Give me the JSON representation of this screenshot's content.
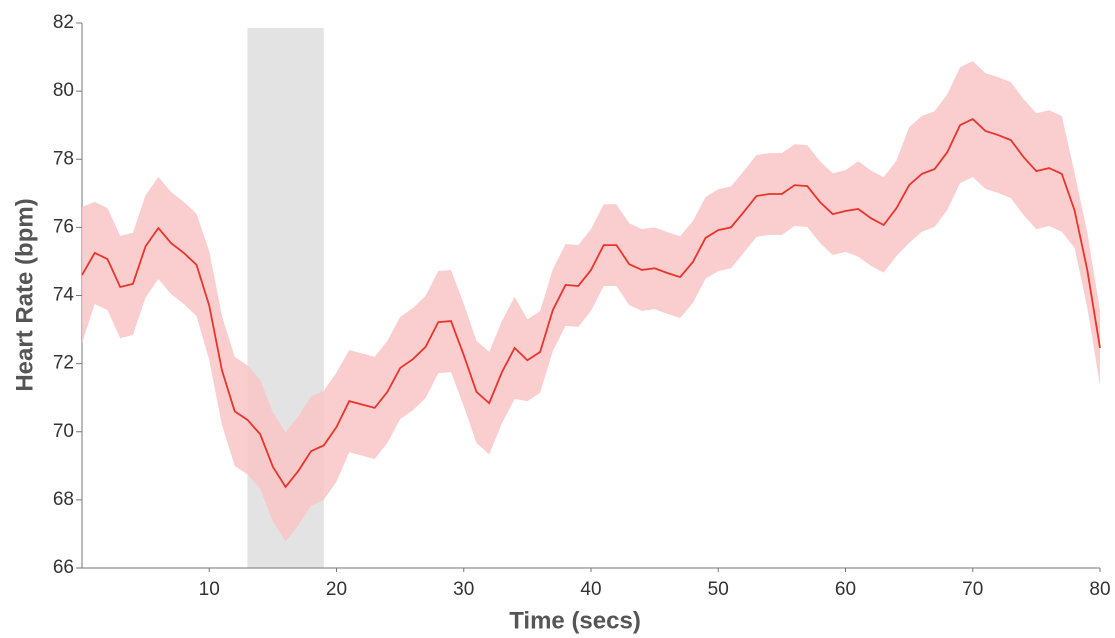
{
  "chart_data": {
    "type": "line",
    "x_label": "Time (secs)",
    "y_label": "Heart Rate (bpm)",
    "xlim": [
      0,
      80
    ],
    "ylim": [
      66,
      82
    ],
    "xticks": [
      10,
      20,
      30,
      40,
      50,
      60,
      70,
      80
    ],
    "yticks": [
      66,
      68,
      70,
      72,
      74,
      76,
      78,
      80,
      82
    ],
    "highlight": [
      13,
      19
    ],
    "highlight_color": "#e3e3e3",
    "x": [
      0,
      1,
      2,
      3,
      4,
      5,
      6,
      7,
      8,
      9,
      10,
      11,
      12,
      13,
      14,
      15,
      16,
      17,
      18,
      19,
      20,
      21,
      22,
      23,
      24,
      25,
      26,
      27,
      28,
      29,
      30,
      31,
      32,
      33,
      34,
      35,
      36,
      37,
      38,
      39,
      40,
      41,
      42,
      43,
      44,
      45,
      46,
      47,
      48,
      49,
      50,
      51,
      52,
      53,
      54,
      55,
      56,
      57,
      58,
      59,
      60,
      61,
      62,
      63,
      64,
      65,
      66,
      67,
      68,
      69,
      70,
      71,
      72,
      73,
      74,
      75,
      76,
      77,
      78,
      79,
      80
    ],
    "series": [
      {
        "color": "#e8352b",
        "values": [
          74.6,
          75.25,
          75.07,
          74.25,
          74.34,
          75.45,
          75.98,
          75.54,
          75.25,
          74.9,
          73.7,
          71.8,
          70.6,
          70.35,
          69.93,
          68.97,
          68.38,
          68.85,
          69.43,
          69.6,
          70.14,
          70.9,
          70.8,
          70.7,
          71.17,
          71.87,
          72.13,
          72.49,
          73.22,
          73.25,
          72.25,
          71.17,
          70.84,
          71.75,
          72.46,
          72.1,
          72.34,
          73.57,
          74.31,
          74.28,
          74.75,
          75.48,
          75.48,
          74.92,
          74.75,
          74.8,
          74.66,
          74.54,
          74.98,
          75.69,
          75.92,
          76.0,
          76.45,
          76.92,
          76.98,
          76.98,
          77.24,
          77.21,
          76.74,
          76.39,
          76.48,
          76.54,
          76.27,
          76.07,
          76.56,
          77.24,
          77.57,
          77.71,
          78.21,
          79.0,
          79.18,
          78.83,
          78.71,
          78.56,
          78.06,
          77.65,
          77.74,
          77.57,
          76.5,
          74.75,
          72.46
        ]
      }
    ],
    "band": {
      "color": "#f9c4c6",
      "upper": [
        76.6,
        76.75,
        76.57,
        75.75,
        75.84,
        76.95,
        77.48,
        77.04,
        76.75,
        76.4,
        75.3,
        73.4,
        72.2,
        71.95,
        71.53,
        70.57,
        69.98,
        70.45,
        71.03,
        71.2,
        71.74,
        72.4,
        72.3,
        72.2,
        72.67,
        73.37,
        73.63,
        73.99,
        74.72,
        74.75,
        73.75,
        72.67,
        72.34,
        73.25,
        73.96,
        73.3,
        73.54,
        74.77,
        75.51,
        75.48,
        75.95,
        76.68,
        76.68,
        76.12,
        75.95,
        76.0,
        75.86,
        75.74,
        76.18,
        76.89,
        77.12,
        77.2,
        77.65,
        78.12,
        78.18,
        78.18,
        78.44,
        78.41,
        77.94,
        77.59,
        77.68,
        77.94,
        77.67,
        77.47,
        77.96,
        78.94,
        79.27,
        79.41,
        79.91,
        80.7,
        80.88,
        80.53,
        80.41,
        80.26,
        79.76,
        79.35,
        79.44,
        79.27,
        77.6,
        75.85,
        73.56
      ],
      "lower": [
        72.6,
        73.75,
        73.57,
        72.75,
        72.84,
        73.95,
        74.48,
        74.04,
        73.75,
        73.4,
        72.1,
        70.2,
        69.0,
        68.75,
        68.33,
        67.37,
        66.78,
        67.25,
        67.83,
        68.0,
        68.54,
        69.4,
        69.3,
        69.2,
        69.67,
        70.37,
        70.63,
        70.99,
        71.72,
        71.75,
        70.75,
        69.67,
        69.34,
        70.25,
        70.96,
        70.9,
        71.14,
        72.37,
        73.11,
        73.08,
        73.55,
        74.28,
        74.28,
        73.72,
        73.55,
        73.6,
        73.46,
        73.34,
        73.78,
        74.49,
        74.72,
        74.8,
        75.25,
        75.72,
        75.78,
        75.78,
        76.04,
        76.01,
        75.54,
        75.19,
        75.28,
        75.14,
        74.87,
        74.67,
        75.16,
        75.54,
        75.87,
        76.01,
        76.51,
        77.3,
        77.48,
        77.13,
        77.01,
        76.86,
        76.36,
        75.95,
        76.04,
        75.87,
        75.4,
        73.65,
        71.36
      ]
    }
  }
}
